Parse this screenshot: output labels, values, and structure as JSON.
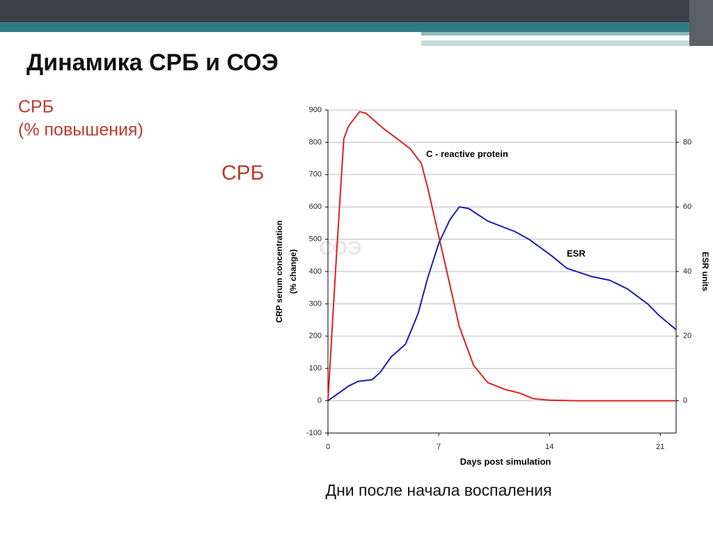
{
  "slide": {
    "title": "Динамика СРБ и СОЭ",
    "side_label": [
      "СРБ",
      "(% повышения)"
    ],
    "side_label_2": "СРБ",
    "caption": "Дни после начала воспаления"
  },
  "chart_data": {
    "type": "line",
    "x_label": "Days post simulation",
    "y_label": [
      "CRP serum concentration",
      "(% change)"
    ],
    "y2_label": "ESR units",
    "annotations": [
      "C - reactive protein",
      "ESR",
      "СОЭ"
    ],
    "xlim": [
      0,
      22
    ],
    "xticks": [
      0,
      7,
      14,
      21
    ],
    "ylim": [
      -100,
      900
    ],
    "yticks": [
      -100,
      0,
      100,
      200,
      300,
      400,
      500,
      600,
      700,
      800,
      900
    ],
    "y2lim": [
      -10,
      90
    ],
    "y2ticks": [
      0,
      20,
      40,
      60,
      80
    ],
    "grid": true,
    "series": [
      {
        "name": "C - reactive protein",
        "color": "#e02020",
        "x": [
          0,
          0.5,
          1,
          1.3,
          2,
          2.4,
          3.5,
          4.4,
          5.2,
          5.9,
          6.3,
          7,
          7.7,
          8.3,
          9.2,
          10.1,
          11.2,
          12.1,
          13,
          14,
          15.8,
          18,
          22
        ],
        "values": [
          0,
          420,
          810,
          850,
          895,
          890,
          843,
          810,
          780,
          735,
          660,
          510,
          360,
          230,
          110,
          56,
          35,
          24,
          6,
          2,
          0,
          0,
          0
        ]
      },
      {
        "name": "ESR",
        "color": "#1a1ab8",
        "axis": "y2",
        "x": [
          0,
          1.3,
          1.9,
          2.8,
          3.3,
          4,
          4.9,
          5.7,
          6.3,
          7,
          7.7,
          8.3,
          8.9,
          10.1,
          11.8,
          12.7,
          14.1,
          15.1,
          16.7,
          17.8,
          18.9,
          20.2,
          20.9,
          22
        ],
        "values": [
          0,
          4.5,
          6,
          6.5,
          8.8,
          13.6,
          17.5,
          27,
          38,
          48.7,
          56,
          60,
          59.5,
          55.6,
          52.4,
          50,
          45,
          41,
          38.4,
          37.3,
          34.7,
          30,
          26.5,
          22
        ]
      }
    ]
  }
}
